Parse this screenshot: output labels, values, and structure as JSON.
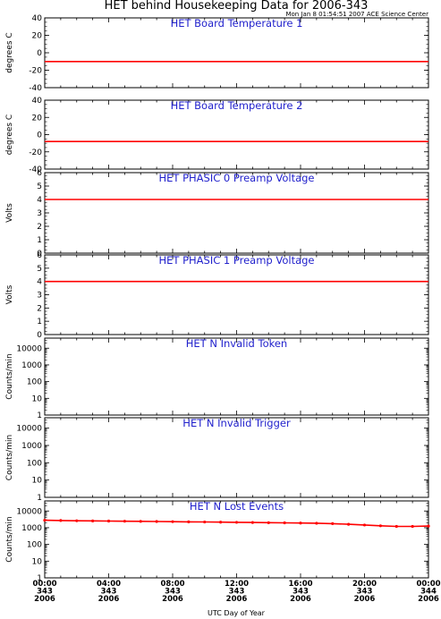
{
  "figure": {
    "title": "HET behind Housekeeping Data for 2006-343",
    "timestamp": "Mon Jan  8 01:54:51 2007 ACE Science Center",
    "xlabel": "UTC Day of Year",
    "xticks": [
      {
        "hour": 0,
        "lines": [
          "00:00",
          "343",
          "2006"
        ]
      },
      {
        "hour": 4,
        "lines": [
          "04:00",
          "343",
          "2006"
        ]
      },
      {
        "hour": 8,
        "lines": [
          "08:00",
          "343",
          "2006"
        ]
      },
      {
        "hour": 12,
        "lines": [
          "12:00",
          "343",
          "2006"
        ]
      },
      {
        "hour": 16,
        "lines": [
          "16:00",
          "343",
          "2006"
        ]
      },
      {
        "hour": 20,
        "lines": [
          "20:00",
          "343",
          "2006"
        ]
      },
      {
        "hour": 24,
        "lines": [
          "00:00",
          "344",
          "2006"
        ]
      }
    ],
    "line_color": "#ff0000",
    "title_color": "#2222cc"
  },
  "chart_data": [
    {
      "type": "line",
      "title": "HET Board Temperature 1",
      "ylabel": "degrees C",
      "ylim": [
        -40,
        40
      ],
      "yscale": "linear",
      "yticks": [
        -40,
        -20,
        0,
        20,
        40
      ],
      "xlim": [
        0,
        24
      ],
      "series": [
        {
          "x": [
            0,
            24
          ],
          "values": [
            -10,
            -10
          ]
        }
      ]
    },
    {
      "type": "line",
      "title": "HET Board Temperature 2",
      "ylabel": "degrees C",
      "ylim": [
        -40,
        40
      ],
      "yscale": "linear",
      "yticks": [
        -40,
        -20,
        0,
        20,
        40
      ],
      "xlim": [
        0,
        24
      ],
      "series": [
        {
          "x": [
            0,
            24
          ],
          "values": [
            -8,
            -8
          ]
        }
      ]
    },
    {
      "type": "line",
      "title": "HET PHASIC 0 Preamp Voltage",
      "ylabel": "Volts",
      "ylim": [
        0,
        6
      ],
      "yscale": "linear",
      "yticks": [
        0,
        1,
        2,
        3,
        4,
        5,
        6
      ],
      "xlim": [
        0,
        24
      ],
      "series": [
        {
          "x": [
            0,
            24
          ],
          "values": [
            4.0,
            4.0
          ]
        }
      ]
    },
    {
      "type": "line",
      "title": "HET PHASIC 1 Preamp Voltage",
      "ylabel": "Volts",
      "ylim": [
        0,
        6
      ],
      "yscale": "linear",
      "yticks": [
        0,
        1,
        2,
        3,
        4,
        5,
        6
      ],
      "xlim": [
        0,
        24
      ],
      "series": [
        {
          "x": [
            0,
            24
          ],
          "values": [
            4.0,
            4.0
          ]
        }
      ]
    },
    {
      "type": "line",
      "title": "HET N Invalid Token",
      "ylabel": "Counts/min",
      "ylim": [
        1,
        40000
      ],
      "yscale": "log",
      "yticks": [
        1,
        10,
        100,
        1000,
        10000
      ],
      "xlim": [
        0,
        24
      ],
      "series": []
    },
    {
      "type": "line",
      "title": "HET N Invalid Trigger",
      "ylabel": "Counts/min",
      "ylim": [
        1,
        40000
      ],
      "yscale": "log",
      "yticks": [
        1,
        10,
        100,
        1000,
        10000
      ],
      "xlim": [
        0,
        24
      ],
      "series": []
    },
    {
      "type": "line",
      "title": "HET N Lost Events",
      "ylabel": "Counts/min",
      "ylim": [
        1,
        40000
      ],
      "yscale": "log",
      "yticks": [
        1,
        10,
        100,
        1000,
        10000
      ],
      "xlim": [
        0,
        24
      ],
      "series": [
        {
          "x": [
            0,
            1,
            2,
            3,
            4,
            5,
            6,
            7,
            8,
            9,
            10,
            11,
            12,
            13,
            14,
            15,
            16,
            17,
            18,
            19,
            20,
            21,
            22,
            23,
            24
          ],
          "values": [
            2800,
            2700,
            2600,
            2550,
            2500,
            2450,
            2400,
            2350,
            2300,
            2250,
            2200,
            2150,
            2100,
            2050,
            2000,
            1950,
            1900,
            1850,
            1750,
            1600,
            1450,
            1300,
            1200,
            1200,
            1250
          ]
        }
      ]
    }
  ]
}
